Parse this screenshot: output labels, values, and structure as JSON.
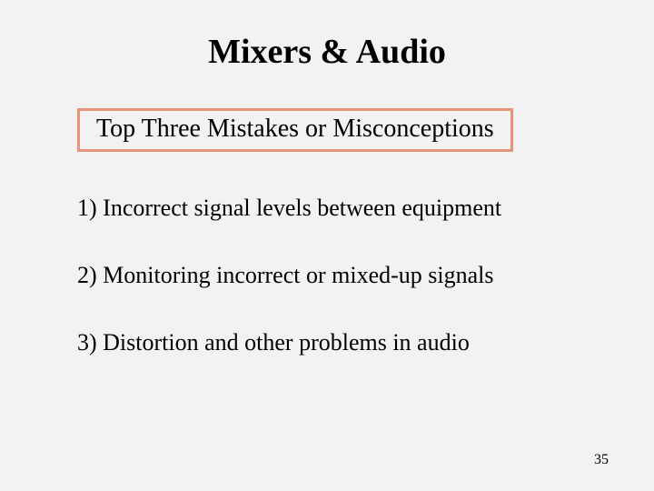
{
  "slide": {
    "title": "Mixers & Audio",
    "subtitle": "Top Three Mistakes or Misconceptions",
    "items": [
      "1) Incorrect signal levels between equipment",
      "2) Monitoring incorrect or mixed-up signals",
      "3) Distortion and other problems in audio"
    ],
    "page_number": "35",
    "background_color": "#f2f2f2",
    "subtitle_border_color": "#e8947a",
    "title_fontsize": 38,
    "subtitle_fontsize": 28,
    "item_fontsize": 26,
    "page_number_fontsize": 16,
    "text_color": "#000000"
  }
}
